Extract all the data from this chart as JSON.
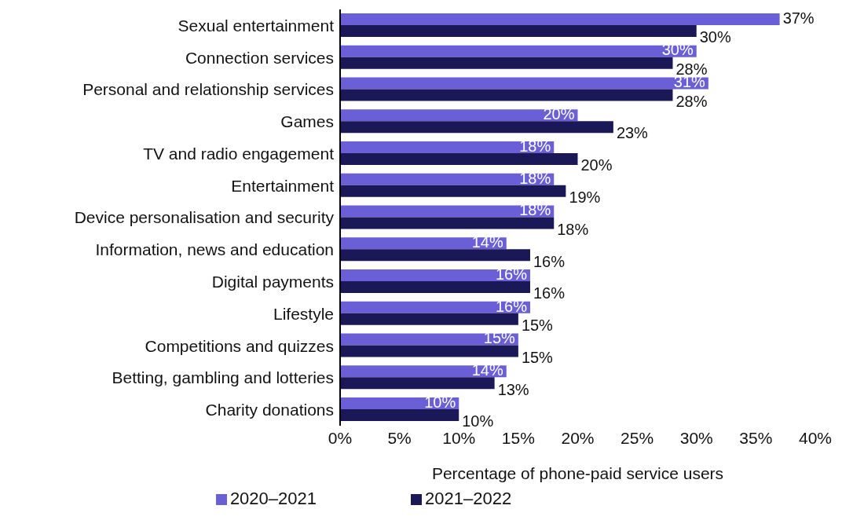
{
  "chart_data": {
    "type": "bar",
    "orientation": "horizontal",
    "xlabel": "Percentage of phone-paid service users",
    "categories": [
      "Sexual entertainment",
      "Connection services",
      "Personal and relationship services",
      "Games",
      "TV and radio engagement",
      "Entertainment",
      "Device personalisation and security",
      "Information, news and education",
      "Digital payments",
      "Lifestyle",
      "Competitions and quizzes",
      "Betting, gambling and lotteries",
      "Charity donations"
    ],
    "series": [
      {
        "name": "2020–2021",
        "color": "#6a5fd6",
        "values": [
          37,
          30,
          31,
          20,
          18,
          18,
          18,
          14,
          16,
          16,
          15,
          14,
          10
        ],
        "value_labels": [
          "37%",
          "30%",
          "31%",
          "20%",
          "18%",
          "18%",
          "18%",
          "14%",
          "16%",
          "16%",
          "15%",
          "14%",
          "10%"
        ]
      },
      {
        "name": "2021–2022",
        "color": "#1b1858",
        "values": [
          30,
          28,
          28,
          23,
          20,
          19,
          18,
          16,
          16,
          15,
          15,
          13,
          10
        ],
        "value_labels": [
          "30%",
          "28%",
          "28%",
          "23%",
          "20%",
          "19%",
          "18%",
          "16%",
          "16%",
          "15%",
          "15%",
          "13%",
          "10%"
        ]
      }
    ],
    "xlim": [
      0,
      40
    ],
    "xticks": [
      {
        "value": 0,
        "label": "0%"
      },
      {
        "value": 5,
        "label": "5%"
      },
      {
        "value": 10,
        "label": "10%"
      },
      {
        "value": 15,
        "label": "15%"
      },
      {
        "value": 20,
        "label": "20%"
      },
      {
        "value": 25,
        "label": "25%"
      },
      {
        "value": 30,
        "label": "30%"
      },
      {
        "value": 35,
        "label": "35%"
      },
      {
        "value": 40,
        "label": "40%"
      }
    ],
    "grid": false,
    "legend": "bottom"
  }
}
